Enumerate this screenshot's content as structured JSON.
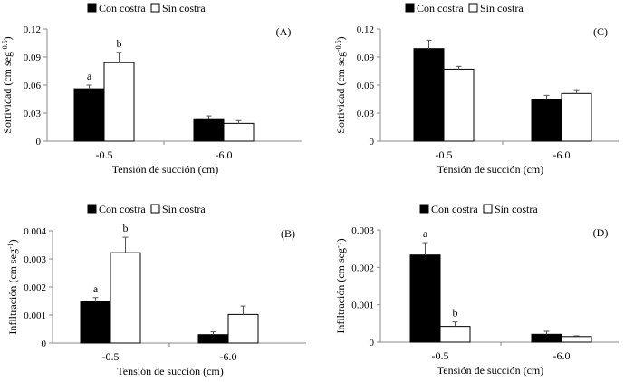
{
  "chart_data": [
    {
      "panel": "(A)",
      "type": "bar",
      "categories": [
        "-0.5",
        "-6.0"
      ],
      "series": [
        {
          "name": "Con costra",
          "values": [
            0.056,
            0.024
          ],
          "errors": [
            0.004,
            0.003
          ],
          "color": "#000000"
        },
        {
          "name": "Sin costra",
          "values": [
            0.084,
            0.019
          ],
          "errors": [
            0.011,
            0.003
          ],
          "color": "#ffffff"
        }
      ],
      "ylim": [
        0,
        0.12
      ],
      "yticks": [
        "0",
        "0.03",
        "0.06",
        "0.09",
        "0.12"
      ],
      "ylabel": "Sortividad (cm seg",
      "ylabel_sup": "-0.5",
      "ylabel_end": ")",
      "xlabel": "Tensión de succión (cm)",
      "letters": [
        [
          "a",
          "b"
        ],
        [
          "",
          ""
        ]
      ],
      "legend": "top-left",
      "grid": false
    },
    {
      "panel": "(C)",
      "type": "bar",
      "categories": [
        "-0.5",
        "-6.0"
      ],
      "series": [
        {
          "name": "Con costra",
          "values": [
            0.099,
            0.045
          ],
          "errors": [
            0.009,
            0.004
          ],
          "color": "#000000"
        },
        {
          "name": "Sin costra",
          "values": [
            0.077,
            0.051
          ],
          "errors": [
            0.003,
            0.004
          ],
          "color": "#ffffff"
        }
      ],
      "ylim": [
        0,
        0.12
      ],
      "yticks": [
        "0",
        "0.03",
        "0.06",
        "0.09",
        "0.12"
      ],
      "ylabel": "Sortividad (cm seg",
      "ylabel_sup": "-0.5",
      "ylabel_end": ")",
      "xlabel": "Tensión de succión (cm)",
      "letters": [
        [
          "",
          ""
        ],
        [
          "",
          ""
        ]
      ],
      "legend": "top-left",
      "grid": false
    },
    {
      "panel": "(B)",
      "type": "bar",
      "categories": [
        "-0.5",
        "-6.0"
      ],
      "series": [
        {
          "name": "Con costra",
          "values": [
            0.00147,
            0.0003
          ],
          "errors": [
            0.00015,
            0.0001
          ],
          "color": "#000000"
        },
        {
          "name": "Sin costra",
          "values": [
            0.00322,
            0.00102
          ],
          "errors": [
            0.00055,
            0.0003
          ],
          "color": "#ffffff"
        }
      ],
      "ylim": [
        0,
        0.004
      ],
      "yticks": [
        "0",
        "0.001",
        "0.002",
        "0.003",
        "0.004"
      ],
      "ylabel": "Infiltración (cm seg",
      "ylabel_sup": "-1",
      "ylabel_end": ")",
      "xlabel": "Tensión de succión (cm)",
      "letters": [
        [
          "a",
          "b"
        ],
        [
          "",
          ""
        ]
      ],
      "legend": "top-left",
      "grid": false
    },
    {
      "panel": "(D)",
      "type": "bar",
      "categories": [
        "-0.5",
        "-6.0"
      ],
      "series": [
        {
          "name": "Con costra",
          "values": [
            0.00233,
            0.00021
          ],
          "errors": [
            0.00033,
            8e-05
          ],
          "color": "#000000"
        },
        {
          "name": "Sin costra",
          "values": [
            0.00042,
            0.00015
          ],
          "errors": [
            0.00012,
            2e-05
          ],
          "color": "#ffffff"
        }
      ],
      "ylim": [
        0,
        0.003
      ],
      "yticks": [
        "0",
        "0.001",
        "0.002",
        "0.003"
      ],
      "ylabel": "Infiltración (cm seg",
      "ylabel_sup": "-1",
      "ylabel_end": ")",
      "xlabel": "Tensión de succión (cm)",
      "letters": [
        [
          "a",
          "b"
        ],
        [
          "",
          ""
        ]
      ],
      "legend": "top-left",
      "grid": false
    }
  ]
}
